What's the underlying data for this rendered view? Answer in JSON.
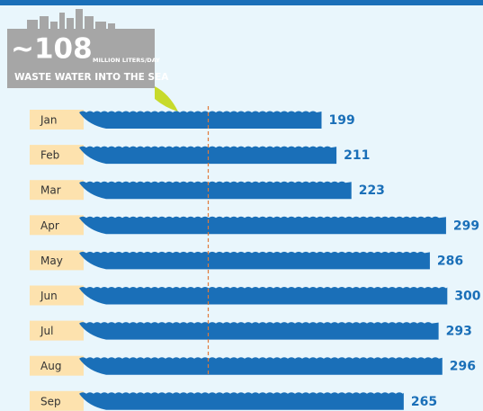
{
  "chart_data": {
    "type": "bar",
    "orientation": "horizontal",
    "categories": [
      "Jan",
      "Feb",
      "Mar",
      "Apr",
      "May",
      "Jun",
      "Jul",
      "Aug",
      "Sep"
    ],
    "values": [
      199,
      211,
      223,
      299,
      286,
      300,
      293,
      296,
      265
    ],
    "color": "#1a6fb8",
    "xlim": [
      0,
      320
    ],
    "annotation": {
      "value": 108,
      "label": "~108",
      "unit": "MILLION LITERS/DAY",
      "text": "WASTE WATER INTO THE SEA"
    }
  }
}
